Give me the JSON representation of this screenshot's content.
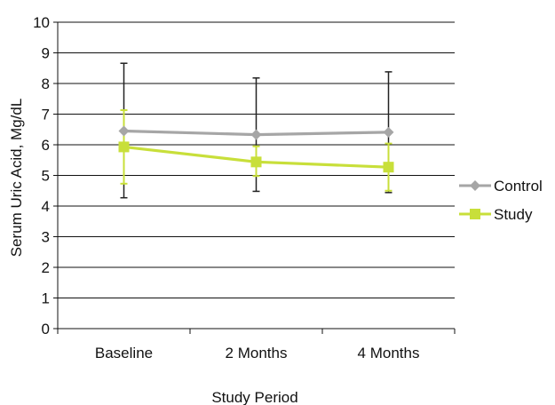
{
  "chart_data": {
    "type": "line",
    "title": "",
    "xlabel": "Study Period",
    "ylabel": "Serum Uric Acid, Mg/dL",
    "categories": [
      "Baseline",
      "2 Months",
      "4 Months"
    ],
    "ylim": [
      0,
      10
    ],
    "yticks": [
      "0",
      "1",
      "2",
      "3",
      "4",
      "5",
      "6",
      "7",
      "8",
      "9",
      "10"
    ],
    "grid": "horizontal",
    "legend_position": "right",
    "series": [
      {
        "name": "Control",
        "color": "#a6a6a6",
        "marker": "diamond",
        "values": [
          6.45,
          6.33,
          6.41
        ],
        "error_low": [
          4.27,
          4.48,
          4.44
        ],
        "error_high": [
          8.66,
          8.18,
          8.38
        ],
        "error_color": "#222222"
      },
      {
        "name": "Study",
        "color": "#c8df3a",
        "marker": "square",
        "values": [
          5.93,
          5.44,
          5.27
        ],
        "error_low": [
          4.73,
          4.98,
          4.5
        ],
        "error_high": [
          7.13,
          5.95,
          6.04
        ],
        "error_color": "#c8df3a"
      }
    ]
  }
}
